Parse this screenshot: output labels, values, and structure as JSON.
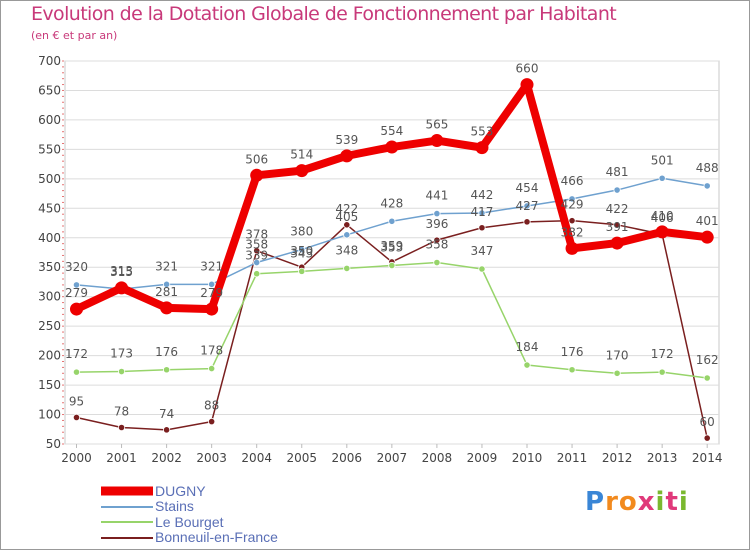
{
  "header": {
    "title": "Evolution de la Dotation Globale de Fonctionnement par Habitant",
    "subtitle": "(en € et par an)"
  },
  "logo": {
    "text": "Proxiti",
    "letters": [
      "P",
      "r",
      "o",
      "x",
      "i",
      "t",
      "i"
    ],
    "colors": [
      "#3a86d6",
      "#f28a1e",
      "#f28a1e",
      "#e0397a",
      "#7ab82f",
      "#e0397a",
      "#7ab82f"
    ]
  },
  "chart_data": {
    "type": "line",
    "title": "Evolution de la Dotation Globale de Fonctionnement par Habitant",
    "subtitle": "(en € et par an)",
    "xlabel": "",
    "ylabel": "",
    "x": [
      "2000",
      "2001",
      "2002",
      "2003",
      "2004",
      "2005",
      "2006",
      "2007",
      "2008",
      "2009",
      "2010",
      "2011",
      "2012",
      "2013",
      "2014"
    ],
    "ylim": [
      50,
      700
    ],
    "yticks": [
      50,
      100,
      150,
      200,
      250,
      300,
      350,
      400,
      450,
      500,
      550,
      600,
      650,
      700
    ],
    "grid": true,
    "legend_position": "bottom-left",
    "series": [
      {
        "name": "DUGNY",
        "color": "#ee0000",
        "values": [
          279,
          315,
          281,
          279,
          506,
          514,
          539,
          554,
          565,
          553,
          660,
          382,
          391,
          410,
          401
        ],
        "labels": [
          "279",
          "315",
          "281",
          "279",
          "506",
          "514",
          "539",
          "554",
          "565",
          "553",
          "660",
          "382",
          "391",
          "410",
          "401"
        ]
      },
      {
        "name": "Stains",
        "color": "#6fa1cf",
        "values": [
          320,
          313,
          321,
          321,
          358,
          380,
          405,
          428,
          441,
          442,
          454,
          466,
          481,
          501,
          488
        ],
        "labels": [
          "320",
          "313",
          "321",
          "321",
          "358",
          "380",
          "405",
          "428",
          "441",
          "442",
          "454",
          "466",
          "481",
          "501",
          "488"
        ]
      },
      {
        "name": "Le Bourget",
        "color": "#97d46a",
        "values": [
          172,
          173,
          176,
          178,
          339,
          343,
          348,
          353,
          358,
          347,
          184,
          176,
          170,
          172,
          162
        ],
        "labels": [
          "172",
          "173",
          "176",
          "178",
          "339",
          "343",
          "348",
          "353",
          "358",
          "347",
          "184",
          "176",
          "170",
          "172",
          "162"
        ]
      },
      {
        "name": "Bonneuil-en-France",
        "color": "#7a1f1f",
        "values": [
          95,
          78,
          74,
          88,
          378,
          350,
          422,
          359,
          396,
          417,
          427,
          429,
          422,
          406,
          60
        ],
        "labels": [
          "95",
          "78",
          "74",
          "88",
          "378",
          "350",
          "422",
          "359",
          "396",
          "417",
          "427",
          "429",
          "422",
          "406",
          "60"
        ]
      }
    ]
  }
}
